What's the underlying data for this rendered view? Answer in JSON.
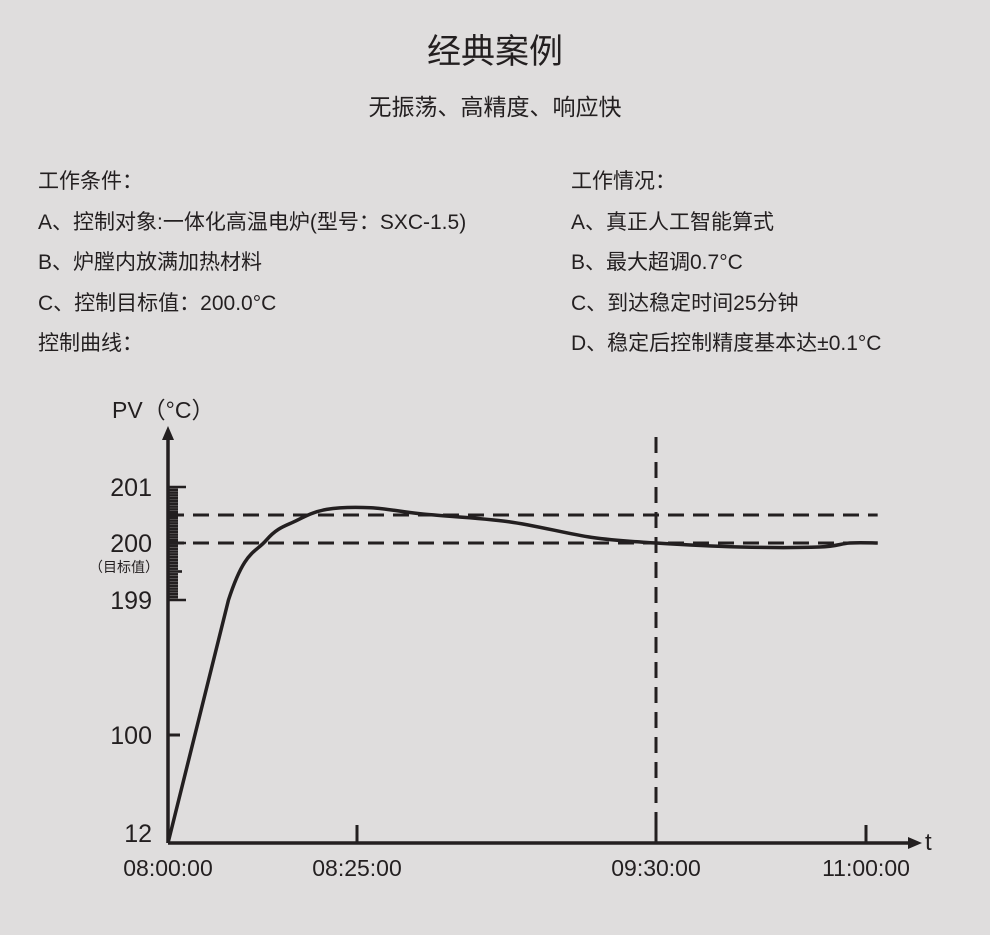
{
  "title": "经典案例",
  "subtitle": "无振荡、高精度、响应快",
  "conditions": {
    "heading": "工作条件：",
    "items": [
      "A、控制对象:一体化高温电炉(型号：SXC-1.5)",
      "B、炉膛内放满加热材料",
      "C、控制目标值：200.0°C",
      "控制曲线："
    ]
  },
  "results": {
    "heading": "工作情况：",
    "items": [
      "A、真正人工智能算式",
      "B、最大超调0.7°C",
      "C、到达稳定时间25分钟",
      "D、稳定后控制精度基本达±0.1°C"
    ]
  },
  "chart_data": {
    "type": "line",
    "ylabel": "PV（°C）",
    "xlabel": "t",
    "y_ticks": [
      {
        "value": 201,
        "label": "201"
      },
      {
        "value": 200,
        "label": "200",
        "note": "（目标值）"
      },
      {
        "value": 199,
        "label": "199"
      },
      {
        "value": 100,
        "label": "100"
      },
      {
        "value": 12,
        "label": "12"
      }
    ],
    "x_ticks": [
      "08:00:00",
      "08:25:00",
      "09:30:00",
      "11:00:00"
    ],
    "reference_lines": {
      "horizontal": [
        200.5,
        200.0
      ],
      "vertical": [
        "09:30"
      ]
    },
    "scale": "broken (non-linear) y-axis",
    "series": [
      {
        "points": [
          [
            "08:00",
            12
          ],
          [
            "08:08",
            199.0
          ],
          [
            "08:13",
            200.05
          ],
          [
            "08:17",
            200.4
          ],
          [
            "08:21",
            200.6
          ],
          [
            "08:28",
            200.63
          ],
          [
            "08:39",
            200.52
          ],
          [
            "08:58",
            200.38
          ],
          [
            "09:16",
            200.1
          ],
          [
            "09:30",
            200.0
          ],
          [
            "10:06",
            199.93
          ],
          [
            "10:40",
            199.93
          ],
          [
            "10:53",
            200.0
          ],
          [
            "11:05",
            200.0
          ]
        ],
        "color": "#231f20"
      }
    ]
  }
}
